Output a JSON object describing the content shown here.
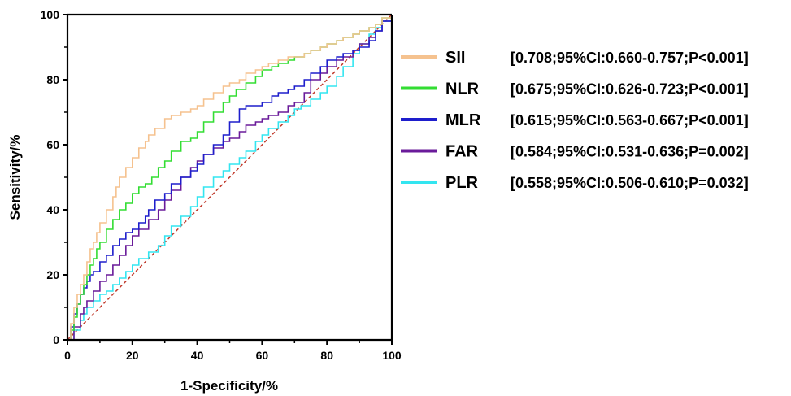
{
  "chart_data": {
    "type": "line",
    "xlabel": "1-Specificity/%",
    "ylabel": "Sensitivity/%",
    "xlim": [
      0,
      100
    ],
    "ylim": [
      0,
      100
    ],
    "xticks": [
      0,
      20,
      40,
      60,
      80,
      100
    ],
    "yticks": [
      0,
      20,
      40,
      60,
      80,
      100
    ],
    "grid": false,
    "legend_position": "right",
    "reference_line": {
      "x": [
        0,
        100
      ],
      "y": [
        0,
        100
      ],
      "color": "#c0392b",
      "style": "dashed"
    },
    "series": [
      {
        "name": "SII",
        "stat": "[0.708;95%CI:0.660-0.757;P<0.001]",
        "color": "#f5c28f",
        "x": [
          0,
          1,
          2,
          3,
          4,
          5,
          6,
          7,
          8,
          9,
          10,
          12,
          14,
          15,
          16,
          18,
          20,
          22,
          24,
          25,
          27,
          30,
          32,
          35,
          38,
          40,
          42,
          45,
          48,
          50,
          53,
          55,
          58,
          60,
          62,
          65,
          68,
          70,
          73,
          75,
          78,
          80,
          83,
          85,
          88,
          90,
          93,
          95,
          97,
          100
        ],
        "y": [
          0,
          5,
          10,
          14,
          17,
          20,
          24,
          28,
          30,
          33,
          36,
          40,
          44,
          47,
          50,
          53,
          56,
          59,
          61,
          63,
          65,
          68,
          69,
          70,
          71,
          72,
          74,
          76,
          78,
          79,
          80,
          82,
          83,
          84,
          85,
          86,
          87,
          87,
          88,
          89,
          90,
          91,
          92,
          93,
          94,
          95,
          96,
          97,
          99,
          100
        ]
      },
      {
        "name": "NLR",
        "stat": "[0.675;95%CI:0.626-0.723;P<0.001]",
        "color": "#33dd33",
        "x": [
          0,
          1,
          2,
          3,
          4,
          5,
          6,
          7,
          8,
          9,
          10,
          12,
          14,
          16,
          18,
          20,
          22,
          24,
          26,
          28,
          30,
          32,
          35,
          38,
          40,
          42,
          45,
          48,
          50,
          52,
          55,
          58,
          60,
          63,
          65,
          68,
          70,
          73,
          75,
          78,
          80,
          83,
          85,
          88,
          90,
          93,
          95,
          97,
          100
        ],
        "y": [
          0,
          3,
          7,
          11,
          14,
          17,
          20,
          23,
          25,
          28,
          30,
          34,
          37,
          40,
          42,
          45,
          47,
          48,
          50,
          53,
          55,
          58,
          61,
          62,
          64,
          67,
          70,
          73,
          75,
          77,
          79,
          81,
          83,
          84,
          85,
          86,
          87,
          88,
          89,
          90,
          91,
          92,
          93,
          94,
          95,
          96,
          97,
          99,
          100
        ]
      },
      {
        "name": "MLR",
        "stat": "[0.615;95%CI:0.563-0.667;P<0.001]",
        "color": "#1e1ecc",
        "x": [
          0,
          1,
          2,
          3,
          4,
          5,
          6,
          7,
          8,
          10,
          12,
          14,
          16,
          18,
          20,
          22,
          24,
          25,
          27,
          30,
          32,
          35,
          38,
          40,
          42,
          45,
          48,
          50,
          53,
          55,
          58,
          60,
          63,
          65,
          68,
          70,
          73,
          75,
          78,
          80,
          83,
          85,
          88,
          90,
          93,
          95,
          97,
          100
        ],
        "y": [
          0,
          4,
          8,
          11,
          14,
          16,
          18,
          20,
          21,
          24,
          26,
          29,
          31,
          33,
          34,
          36,
          38,
          40,
          43,
          45,
          48,
          50,
          52,
          54,
          57,
          60,
          63,
          67,
          71,
          72,
          72,
          73,
          75,
          76,
          77,
          78,
          80,
          82,
          84,
          86,
          87,
          88,
          89,
          90,
          92,
          95,
          98,
          100
        ]
      },
      {
        "name": "FAR",
        "stat": "[0.584;95%CI:0.531-0.636;P=0.002]",
        "color": "#6a1b9a",
        "x": [
          0,
          2,
          4,
          5,
          6,
          8,
          10,
          12,
          14,
          16,
          18,
          20,
          22,
          25,
          28,
          30,
          32,
          35,
          38,
          40,
          42,
          45,
          48,
          50,
          53,
          55,
          58,
          60,
          62,
          65,
          68,
          70,
          73,
          75,
          78,
          80,
          83,
          85,
          88,
          90,
          93,
          95,
          97,
          100
        ],
        "y": [
          0,
          4,
          8,
          10,
          12,
          15,
          18,
          20,
          23,
          26,
          29,
          32,
          34,
          37,
          40,
          43,
          46,
          50,
          53,
          55,
          57,
          59,
          61,
          62,
          64,
          66,
          67,
          68,
          69,
          70,
          72,
          73,
          76,
          80,
          82,
          84,
          86,
          87,
          89,
          91,
          93,
          95,
          98,
          100
        ]
      },
      {
        "name": "PLR",
        "stat": "[0.558;95%CI:0.506-0.610;P=0.032]",
        "color": "#33e5f0",
        "x": [
          0,
          2,
          4,
          5,
          6,
          8,
          10,
          12,
          14,
          16,
          18,
          20,
          22,
          25,
          28,
          30,
          32,
          35,
          38,
          40,
          42,
          45,
          48,
          50,
          53,
          55,
          58,
          60,
          62,
          65,
          68,
          70,
          72,
          75,
          78,
          80,
          83,
          85,
          88,
          90,
          93,
          95,
          97,
          100
        ],
        "y": [
          0,
          3,
          6,
          8,
          10,
          12,
          14,
          15,
          17,
          19,
          21,
          23,
          25,
          27,
          29,
          32,
          35,
          38,
          41,
          44,
          47,
          50,
          52,
          54,
          56,
          58,
          61,
          63,
          65,
          67,
          69,
          71,
          72,
          74,
          76,
          78,
          81,
          84,
          88,
          91,
          94,
          96,
          98,
          100
        ]
      }
    ]
  }
}
